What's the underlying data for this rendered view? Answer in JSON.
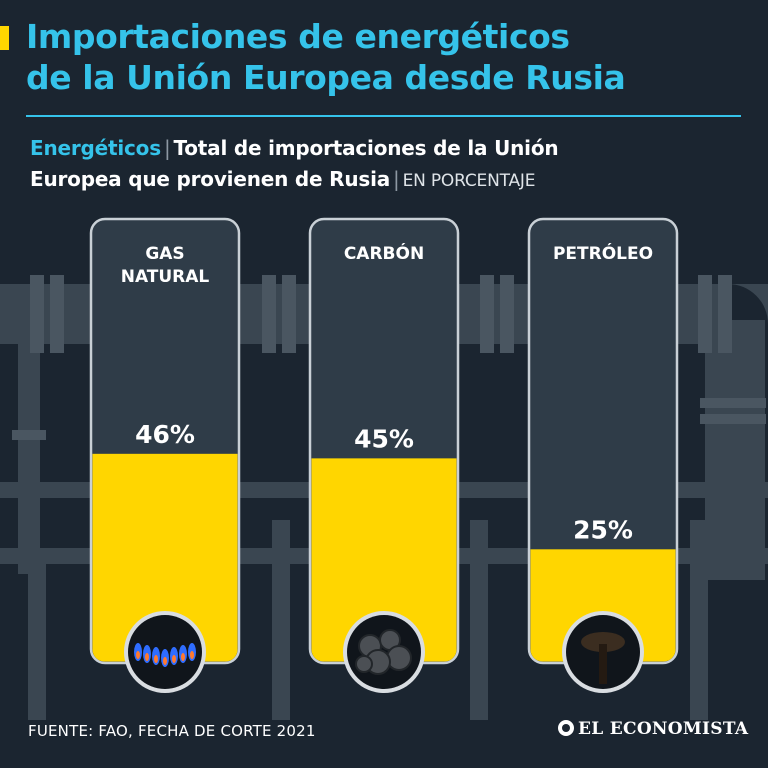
{
  "header": {
    "title_line1": "Importaciones de energéticos",
    "title_line2": "de la Unión Europea desde Rusia",
    "subtitle_category": "Energéticos",
    "subtitle_text_line1": "Total de importaciones de la Unión",
    "subtitle_text_line2": "Europea que provienen de Rusia",
    "subtitle_unit": "EN PORCENTAJE"
  },
  "colors": {
    "accent_cyan": "#35c3ea",
    "accent_yellow": "#ffd600",
    "background": "#1b2530",
    "tank": "#2f3c48",
    "pipes": "#3c4853"
  },
  "chart_data": {
    "type": "bar",
    "categories": [
      "GAS NATURAL",
      "CARBÓN",
      "PETRÓLEO"
    ],
    "values": [
      46,
      45,
      25
    ],
    "value_labels": [
      "46%",
      "45%",
      "25%"
    ],
    "icons": [
      "gas-flame-icon",
      "coal-icon",
      "oil-icon"
    ],
    "ylim": [
      0,
      100
    ],
    "unit": "%"
  },
  "footer": {
    "source": "FUENTE: FAO, FECHA DE CORTE 2021",
    "brand": "EL ECONOMISTA"
  }
}
